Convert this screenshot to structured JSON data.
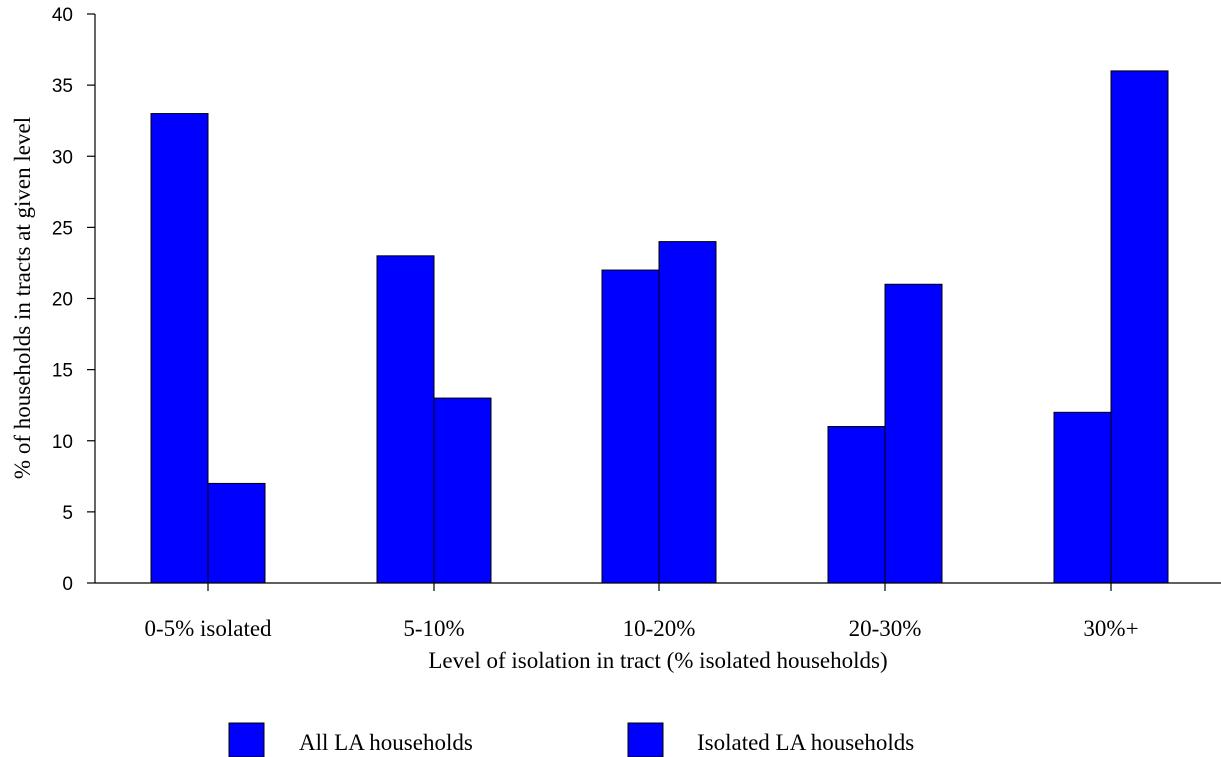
{
  "chart_data": {
    "type": "bar",
    "title": "",
    "xlabel": "Level of isolation in tract (% isolated households)",
    "ylabel": "% of households in tracts at given level",
    "ylim": [
      0,
      40
    ],
    "yticks": [
      0,
      5,
      10,
      15,
      20,
      25,
      30,
      35,
      40
    ],
    "categories": [
      "0-5% isolated",
      "5-10%",
      "10-20%",
      "20-30%",
      "30%+"
    ],
    "series": [
      {
        "name": "All LA households",
        "values": [
          33,
          23,
          22,
          11,
          12
        ],
        "color": "#0000ff"
      },
      {
        "name": "Isolated LA households",
        "values": [
          7,
          13,
          24,
          21,
          36
        ],
        "color": "#0000ff"
      }
    ],
    "grid": false,
    "legend": "bottom"
  }
}
